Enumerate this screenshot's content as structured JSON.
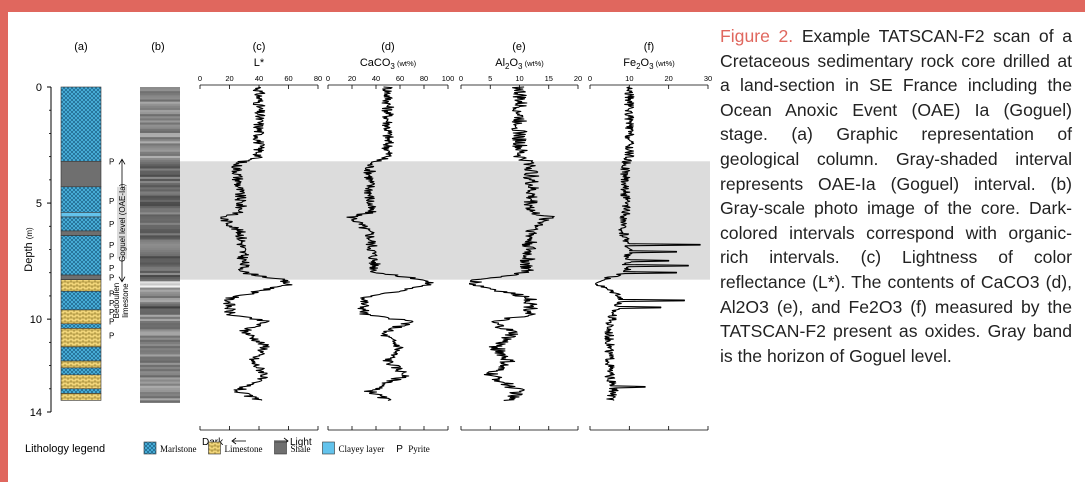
{
  "caption": {
    "lead": "Figure 2.",
    "body": " Example TATSCAN-F2 scan of a Cretaceous sedimentary rock core drilled at a land-section in SE France including the Ocean Anoxic Event (OAE) Ia (Goguel) stage. (a) Graphic representation of geological column. Gray-shaded interval represents OAE-Ia (Goguel) interval. (b) Gray-scale photo image of the core. Dark-colored intervals correspond with organic-rich intervals. (c) Lightness of color reflectance (L*). The contents of CaCO3 (d), Al2O3 (e), and Fe2O3 (f) measured by the TATSCAN-F2 present as oxides. Gray band is the horizon of Goguel level."
  },
  "colors": {
    "accent": "#e0675e",
    "band": "#dcdcdc",
    "marlstone": "#4cb6e0",
    "limestone": "#f1d57a",
    "shale": "#6f6f6f",
    "clayey": "#63c3ec"
  },
  "chart_data": {
    "type": "line",
    "y_axis": {
      "label": "Depth",
      "unit": "(m)",
      "range": [
        0,
        14
      ],
      "ticks": [
        0,
        5,
        10,
        14
      ],
      "inverted": true
    },
    "goguel_band": [
      3.2,
      8.3
    ],
    "panel_labels": {
      "a": "(a)",
      "b": "(b)",
      "c": "(c)",
      "d": "(d)",
      "e": "(e)",
      "f": "(f)"
    },
    "annotations": {
      "goguel": "Goguel level (OAE-Ia)",
      "bedoulien": [
        "Bedoulien",
        "limestone"
      ],
      "dark": "Dark",
      "light": "Light",
      "pyrite_mark": "P"
    },
    "pyrite_depths": [
      3.2,
      4.9,
      5.9,
      6.8,
      7.3,
      7.8,
      8.2,
      8.9,
      9.3,
      9.7,
      10.1,
      10.7
    ],
    "lithology": [
      {
        "top": 0.0,
        "bottom": 3.2,
        "type": "marlstone"
      },
      {
        "top": 3.2,
        "bottom": 4.3,
        "type": "shale"
      },
      {
        "top": 4.3,
        "bottom": 5.4,
        "type": "marlstone"
      },
      {
        "top": 5.4,
        "bottom": 5.6,
        "type": "clayey"
      },
      {
        "top": 5.6,
        "bottom": 6.2,
        "type": "marlstone"
      },
      {
        "top": 6.2,
        "bottom": 6.4,
        "type": "shale"
      },
      {
        "top": 6.4,
        "bottom": 8.1,
        "type": "marlstone"
      },
      {
        "top": 8.1,
        "bottom": 8.3,
        "type": "shale"
      },
      {
        "top": 8.3,
        "bottom": 8.8,
        "type": "limestone"
      },
      {
        "top": 8.8,
        "bottom": 9.6,
        "type": "marlstone"
      },
      {
        "top": 9.6,
        "bottom": 10.2,
        "type": "limestone"
      },
      {
        "top": 10.2,
        "bottom": 10.4,
        "type": "marlstone"
      },
      {
        "top": 10.4,
        "bottom": 11.2,
        "type": "limestone"
      },
      {
        "top": 11.2,
        "bottom": 11.8,
        "type": "marlstone"
      },
      {
        "top": 11.8,
        "bottom": 12.1,
        "type": "limestone"
      },
      {
        "top": 12.1,
        "bottom": 12.4,
        "type": "marlstone"
      },
      {
        "top": 12.4,
        "bottom": 13.0,
        "type": "limestone"
      },
      {
        "top": 13.0,
        "bottom": 13.2,
        "type": "marlstone"
      },
      {
        "top": 13.2,
        "bottom": 13.5,
        "type": "limestone"
      }
    ],
    "legend": {
      "title": "Lithology legend",
      "items": [
        {
          "key": "marlstone",
          "label": "Marlstone"
        },
        {
          "key": "limestone",
          "label": "Limestone"
        },
        {
          "key": "shale",
          "label": "Shale"
        },
        {
          "key": "clayey",
          "label": "Clayey layer"
        },
        {
          "key": "pyrite",
          "symbol": "P",
          "label": "Pyrite"
        }
      ]
    },
    "series": [
      {
        "id": "c",
        "name": "L*",
        "xlim": [
          0,
          80
        ],
        "ticks": [
          0,
          20,
          40,
          60,
          80
        ],
        "noise": 4,
        "profile": [
          [
            0,
            40
          ],
          [
            3,
            40
          ],
          [
            3.3,
            25
          ],
          [
            5.4,
            28
          ],
          [
            5.6,
            15
          ],
          [
            6.3,
            28
          ],
          [
            8,
            30
          ],
          [
            8.3,
            55
          ],
          [
            8.5,
            60
          ],
          [
            9.1,
            20
          ],
          [
            9.8,
            20
          ],
          [
            10.1,
            45
          ],
          [
            10.5,
            30
          ],
          [
            11.2,
            45
          ],
          [
            11.8,
            35
          ],
          [
            12.4,
            45
          ],
          [
            13.1,
            25
          ],
          [
            13.5,
            40
          ]
        ]
      },
      {
        "id": "d",
        "name": "CaCO3",
        "sub": "3",
        "unit": "(wt%)",
        "xlim": [
          0,
          100
        ],
        "ticks": [
          0,
          20,
          40,
          60,
          80,
          100
        ],
        "noise": 5,
        "profile": [
          [
            0,
            50
          ],
          [
            3,
            50
          ],
          [
            3.3,
            35
          ],
          [
            5.4,
            35
          ],
          [
            5.6,
            20
          ],
          [
            6.3,
            35
          ],
          [
            8,
            40
          ],
          [
            8.3,
            80
          ],
          [
            8.5,
            85
          ],
          [
            9.1,
            30
          ],
          [
            9.8,
            30
          ],
          [
            10.1,
            70
          ],
          [
            10.6,
            45
          ],
          [
            11.2,
            60
          ],
          [
            11.8,
            50
          ],
          [
            12.4,
            65
          ],
          [
            13.1,
            35
          ],
          [
            13.5,
            50
          ]
        ]
      },
      {
        "id": "e",
        "name": "Al2O3",
        "sub": "2",
        "sub2": "3",
        "unit": "(wt%)",
        "xlim": [
          0,
          20
        ],
        "ticks": [
          0,
          5,
          10,
          15,
          20
        ],
        "noise": 1.3,
        "profile": [
          [
            0,
            10
          ],
          [
            3,
            10
          ],
          [
            3.3,
            12
          ],
          [
            5.4,
            12
          ],
          [
            5.6,
            15
          ],
          [
            6.3,
            12
          ],
          [
            8,
            11
          ],
          [
            8.3,
            3
          ],
          [
            8.5,
            2
          ],
          [
            9.1,
            12
          ],
          [
            9.8,
            12
          ],
          [
            10.1,
            5
          ],
          [
            10.6,
            9
          ],
          [
            11.2,
            6
          ],
          [
            11.8,
            8
          ],
          [
            12.4,
            5
          ],
          [
            13.1,
            10
          ],
          [
            13.5,
            8
          ]
        ]
      },
      {
        "id": "f",
        "name": "Fe2O3",
        "sub": "2",
        "sub2": "3",
        "unit": "(wt%)",
        "xlim": [
          0,
          30
        ],
        "ticks": [
          0,
          10,
          20,
          30
        ],
        "noise": 1.2,
        "profile": [
          [
            0,
            10
          ],
          [
            3,
            10
          ],
          [
            3.3,
            9
          ],
          [
            5.4,
            9
          ],
          [
            6,
            8
          ],
          [
            7,
            10
          ],
          [
            8,
            9
          ],
          [
            8.3,
            3
          ],
          [
            8.5,
            2
          ],
          [
            9,
            8
          ],
          [
            9.8,
            6
          ],
          [
            10.2,
            5
          ],
          [
            11.2,
            5
          ],
          [
            12.5,
            5
          ],
          [
            13.1,
            6
          ],
          [
            13.5,
            5
          ]
        ],
        "spikes": [
          [
            6.8,
            28
          ],
          [
            7.1,
            22
          ],
          [
            7.5,
            20
          ],
          [
            7.7,
            25
          ],
          [
            8.0,
            22
          ],
          [
            9.2,
            24
          ],
          [
            9.5,
            18
          ],
          [
            12.9,
            14
          ]
        ]
      }
    ]
  }
}
